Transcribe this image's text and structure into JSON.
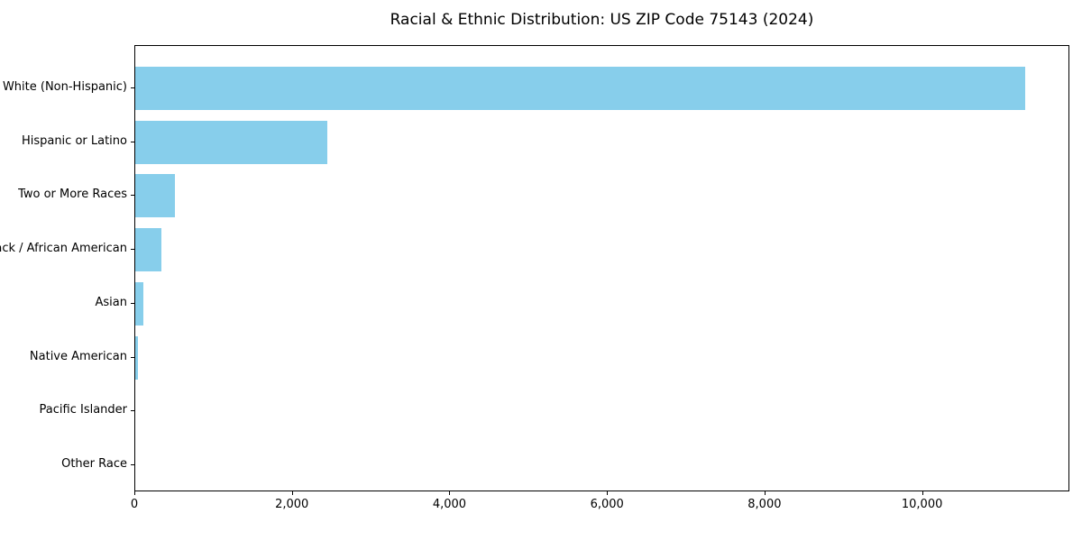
{
  "chart_data": {
    "type": "bar",
    "orientation": "horizontal",
    "title": "Racial & Ethnic Distribution: US ZIP Code 75143 (2024)",
    "categories": [
      "White (Non-Hispanic)",
      "Hispanic or Latino",
      "Two or More Races",
      "Black / African American",
      "Asian",
      "Native American",
      "Pacific Islander",
      "Other Race"
    ],
    "values": [
      11300,
      2440,
      500,
      330,
      100,
      30,
      0,
      0
    ],
    "xlabel": "",
    "ylabel": "",
    "xlim": [
      0,
      11870
    ],
    "x_ticks": [
      {
        "value": 0,
        "label": "0"
      },
      {
        "value": 2000,
        "label": "2,000"
      },
      {
        "value": 4000,
        "label": "4,000"
      },
      {
        "value": 6000,
        "label": "6,000"
      },
      {
        "value": 8000,
        "label": "8,000"
      },
      {
        "value": 10000,
        "label": "10,000"
      }
    ],
    "bar_color": "#87CEEB",
    "frame_color": "#000000",
    "background_color": "#ffffff",
    "grid": false,
    "legend": null
  }
}
